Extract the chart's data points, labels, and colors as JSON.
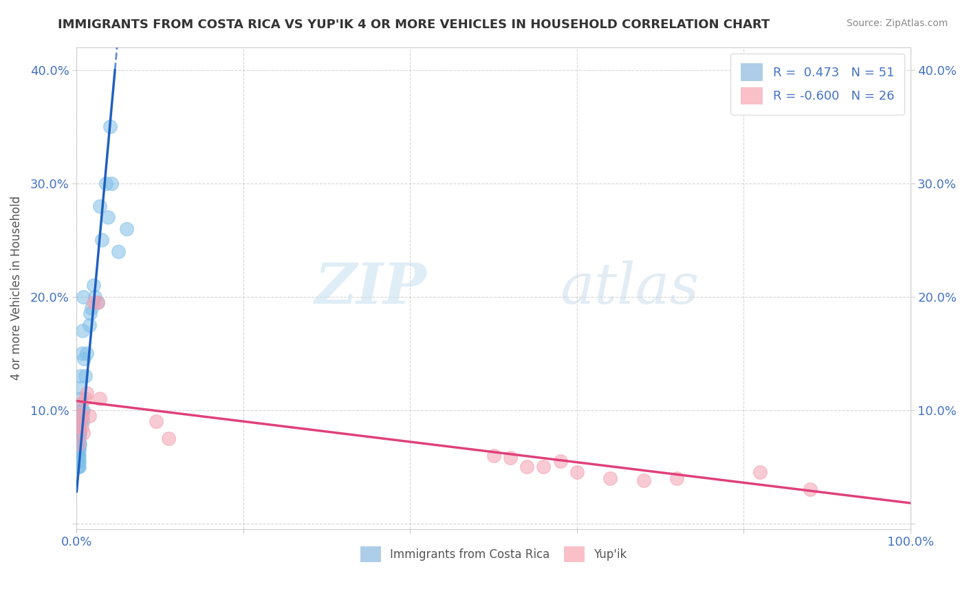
{
  "title": "IMMIGRANTS FROM COSTA RICA VS YUP'IK 4 OR MORE VEHICLES IN HOUSEHOLD CORRELATION CHART",
  "source": "Source: ZipAtlas.com",
  "ylabel": "4 or more Vehicles in Household",
  "xlim": [
    0.0,
    1.0
  ],
  "ylim": [
    -0.005,
    0.42
  ],
  "xticks": [
    0.0,
    0.2,
    0.4,
    0.6,
    0.8,
    1.0
  ],
  "xticklabels": [
    "0.0%",
    "",
    "",
    "",
    "",
    "100.0%"
  ],
  "yticks": [
    0.0,
    0.1,
    0.2,
    0.3,
    0.4
  ],
  "yticklabels": [
    "",
    "10.0%",
    "20.0%",
    "30.0%",
    "40.0%"
  ],
  "blue_color": "#7fbfe8",
  "pink_color": "#f4a0b0",
  "trendline_blue_color": "#2060c0",
  "trendline_pink_color": "#e0407a",
  "blue_scatter_x": [
    0.001,
    0.001,
    0.001,
    0.001,
    0.001,
    0.002,
    0.002,
    0.002,
    0.002,
    0.002,
    0.002,
    0.002,
    0.003,
    0.003,
    0.003,
    0.003,
    0.003,
    0.003,
    0.003,
    0.003,
    0.004,
    0.004,
    0.004,
    0.004,
    0.004,
    0.005,
    0.005,
    0.005,
    0.006,
    0.006,
    0.007,
    0.007,
    0.008,
    0.008,
    0.009,
    0.01,
    0.012,
    0.015,
    0.016,
    0.018,
    0.02,
    0.022,
    0.025,
    0.028,
    0.03,
    0.035,
    0.038,
    0.04,
    0.042,
    0.05,
    0.06
  ],
  "blue_scatter_y": [
    0.05,
    0.055,
    0.06,
    0.065,
    0.07,
    0.05,
    0.055,
    0.06,
    0.065,
    0.07,
    0.075,
    0.08,
    0.05,
    0.055,
    0.06,
    0.065,
    0.07,
    0.075,
    0.08,
    0.085,
    0.07,
    0.08,
    0.09,
    0.1,
    0.12,
    0.09,
    0.11,
    0.13,
    0.1,
    0.15,
    0.09,
    0.17,
    0.1,
    0.2,
    0.145,
    0.13,
    0.15,
    0.175,
    0.185,
    0.19,
    0.21,
    0.2,
    0.195,
    0.28,
    0.25,
    0.3,
    0.27,
    0.35,
    0.3,
    0.24,
    0.26
  ],
  "pink_scatter_x": [
    0.002,
    0.003,
    0.004,
    0.005,
    0.006,
    0.007,
    0.008,
    0.01,
    0.012,
    0.015,
    0.02,
    0.025,
    0.028,
    0.095,
    0.11,
    0.5,
    0.52,
    0.54,
    0.56,
    0.58,
    0.6,
    0.64,
    0.68,
    0.72,
    0.82,
    0.88
  ],
  "pink_scatter_y": [
    0.07,
    0.085,
    0.105,
    0.095,
    0.085,
    0.095,
    0.08,
    0.11,
    0.115,
    0.095,
    0.195,
    0.195,
    0.11,
    0.09,
    0.075,
    0.06,
    0.058,
    0.05,
    0.05,
    0.055,
    0.045,
    0.04,
    0.038,
    0.04,
    0.045,
    0.03
  ],
  "blue_trendline_x": [
    0.0,
    0.046
  ],
  "blue_trendline_y": [
    0.028,
    0.4
  ],
  "pink_trendline_x": [
    0.0,
    1.0
  ],
  "pink_trendline_y": [
    0.108,
    0.018
  ]
}
